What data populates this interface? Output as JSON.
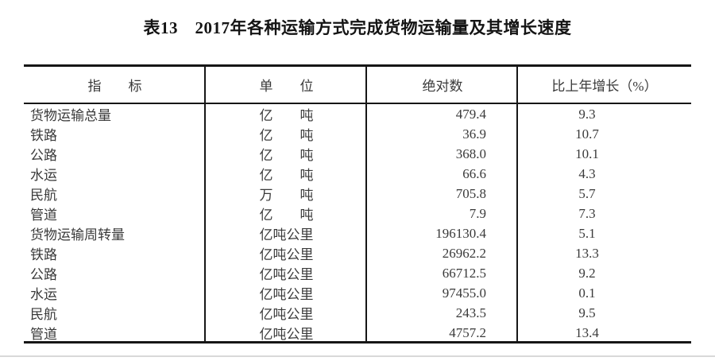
{
  "title": "表13　2017年各种运输方式完成货物运输量及其增长速度",
  "colors": {
    "rule": "#161616",
    "text": "#3a3a3a",
    "title_text": "#141414",
    "bottom_rule": "#d8d8d8"
  },
  "table": {
    "headers": {
      "indicator": "指　　标",
      "unit": "单　　位",
      "absolute": "绝对数",
      "growth": "比上年增长（%）"
    },
    "rows": [
      {
        "indicator": "货物运输总量",
        "unit": "亿　　吨",
        "value": "479.4",
        "growth": "9.3"
      },
      {
        "indicator": "铁路",
        "unit": "亿　　吨",
        "value": "36.9",
        "growth": "10.7"
      },
      {
        "indicator": "公路",
        "unit": "亿　　吨",
        "value": "368.0",
        "growth": "10.1"
      },
      {
        "indicator": "水运",
        "unit": "亿　　吨",
        "value": "66.6",
        "growth": "4.3"
      },
      {
        "indicator": "民航",
        "unit": "万　　吨",
        "value": "705.8",
        "growth": "5.7"
      },
      {
        "indicator": "管道",
        "unit": "亿　　吨",
        "value": "7.9",
        "growth": "7.3"
      },
      {
        "indicator": "货物运输周转量",
        "unit": "亿吨公里",
        "value": "196130.4",
        "growth": "5.1"
      },
      {
        "indicator": "铁路",
        "unit": "亿吨公里",
        "value": "26962.2",
        "growth": "13.3"
      },
      {
        "indicator": "公路",
        "unit": "亿吨公里",
        "value": "66712.5",
        "growth": "9.2"
      },
      {
        "indicator": "水运",
        "unit": "亿吨公里",
        "value": "97455.0",
        "growth": "0.1"
      },
      {
        "indicator": "民航",
        "unit": "亿吨公里",
        "value": "243.5",
        "growth": "9.5"
      },
      {
        "indicator": "管道",
        "unit": "亿吨公里",
        "value": "4757.2",
        "growth": "13.4"
      }
    ]
  }
}
